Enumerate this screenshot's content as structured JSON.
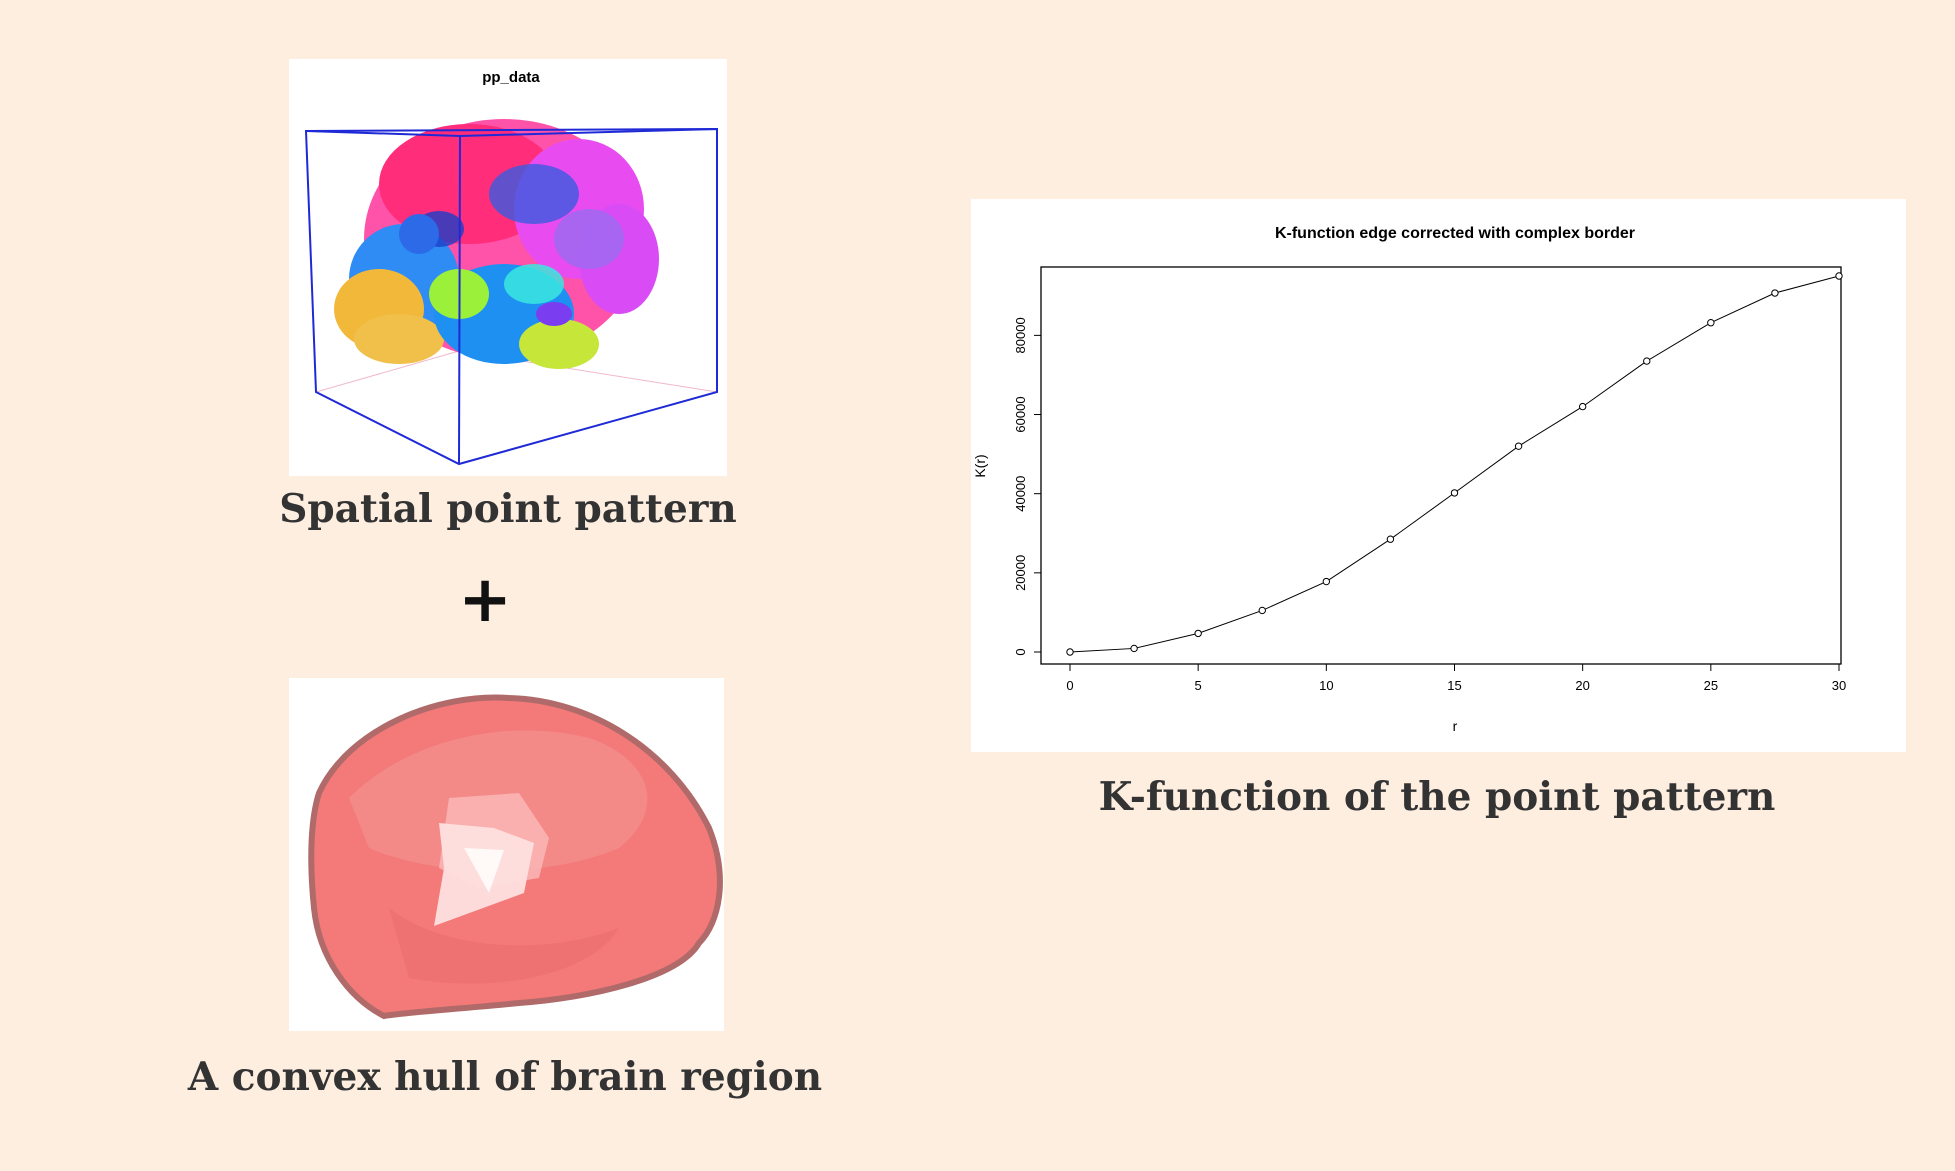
{
  "point_pattern": {
    "title": "pp_data",
    "caption": "Spatial point pattern"
  },
  "operator": "+",
  "hull": {
    "caption": "A convex hull of brain region"
  },
  "kfunction": {
    "caption": "K-function of the point pattern"
  },
  "chart_data": {
    "type": "line",
    "title": "K-function edge corrected with complex border",
    "xlabel": "r",
    "ylabel": "K(r)",
    "xlim": [
      0,
      30
    ],
    "ylim": [
      0,
      95000
    ],
    "xticks": [
      "0",
      "5",
      "10",
      "15",
      "20",
      "25",
      "30"
    ],
    "yticks": [
      "0",
      "20000",
      "40000",
      "60000",
      "80000"
    ],
    "grid": false,
    "x": [
      0,
      2.5,
      5,
      7.5,
      10,
      12.5,
      15,
      17.5,
      20,
      22.5,
      25,
      27.5,
      30
    ],
    "y": [
      0,
      900,
      4700,
      10500,
      17800,
      28500,
      40200,
      52000,
      62000,
      73500,
      83200,
      90700,
      95000
    ]
  }
}
